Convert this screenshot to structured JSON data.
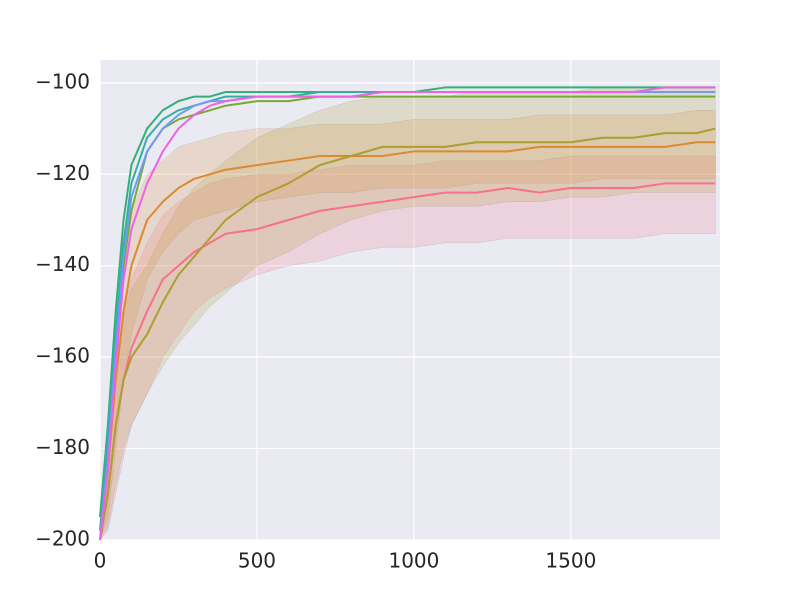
{
  "chart_data": {
    "type": "line",
    "x": [
      0,
      25,
      50,
      75,
      100,
      150,
      200,
      250,
      300,
      350,
      400,
      500,
      600,
      700,
      800,
      900,
      1000,
      1100,
      1200,
      1300,
      1400,
      1500,
      1600,
      1700,
      1800,
      1900,
      1960
    ],
    "series": [
      {
        "color": "#f77189",
        "values": [
          -200,
          -190,
          -175,
          -165,
          -158,
          -150,
          -143,
          -140,
          -137,
          -135,
          -133,
          -132,
          -130,
          -128,
          -127,
          -126,
          -125,
          -124,
          -124,
          -123,
          -124,
          -123,
          -123,
          -123,
          -122,
          -122,
          -122
        ],
        "lower": [
          -200,
          -198,
          -190,
          -182,
          -175,
          -168,
          -160,
          -155,
          -150,
          -147,
          -145,
          -142,
          -140,
          -139,
          -137,
          -136,
          -136,
          -135,
          -135,
          -134,
          -134,
          -134,
          -134,
          -134,
          -133,
          -133,
          -133
        ],
        "upper": [
          -200,
          -183,
          -165,
          -150,
          -143,
          -135,
          -129,
          -126,
          -124,
          -122,
          -121,
          -120,
          -120,
          -119,
          -118,
          -118,
          -118,
          -117,
          -117,
          -117,
          -117,
          -116,
          -116,
          -116,
          -116,
          -116,
          -116
        ]
      },
      {
        "color": "#dc8932",
        "values": [
          -200,
          -185,
          -165,
          -150,
          -140,
          -130,
          -126,
          -123,
          -121,
          -120,
          -119,
          -118,
          -117,
          -116,
          -116,
          -116,
          -115,
          -115,
          -115,
          -115,
          -114,
          -114,
          -114,
          -114,
          -114,
          -113,
          -113
        ],
        "lower": [
          -200,
          -195,
          -180,
          -165,
          -155,
          -143,
          -137,
          -133,
          -130,
          -129,
          -128,
          -126,
          -125,
          -124,
          -124,
          -123,
          -123,
          -123,
          -122,
          -122,
          -122,
          -122,
          -121,
          -121,
          -121,
          -121,
          -121
        ],
        "upper": [
          -200,
          -177,
          -152,
          -137,
          -128,
          -120,
          -117,
          -114,
          -113,
          -112,
          -111,
          -110,
          -110,
          -109,
          -109,
          -109,
          -108,
          -108,
          -108,
          -108,
          -107,
          -107,
          -107,
          -107,
          -107,
          -106,
          -106
        ]
      },
      {
        "color": "#ae9d31",
        "values": [
          -200,
          -190,
          -175,
          -165,
          -160,
          -155,
          -148,
          -142,
          -138,
          -134,
          -130,
          -125,
          -122,
          -118,
          -116,
          -114,
          -114,
          -114,
          -113,
          -113,
          -113,
          -113,
          -112,
          -112,
          -111,
          -111,
          -110
        ],
        "lower": [
          -200,
          -197,
          -188,
          -180,
          -175,
          -168,
          -162,
          -157,
          -153,
          -149,
          -146,
          -140,
          -137,
          -133,
          -130,
          -128,
          -127,
          -127,
          -127,
          -126,
          -126,
          -125,
          -125,
          -124,
          -124,
          -124,
          -124
        ],
        "upper": [
          -200,
          -180,
          -162,
          -150,
          -145,
          -140,
          -133,
          -127,
          -123,
          -120,
          -117,
          -112,
          -109,
          -106,
          -104,
          -103,
          -103,
          -103,
          -102,
          -102,
          -102,
          -102,
          -101,
          -101,
          -101,
          -101,
          -101
        ]
      },
      {
        "color": "#77ab31",
        "values": [
          -195,
          -180,
          -158,
          -140,
          -128,
          -115,
          -110,
          -108,
          -107,
          -106,
          -105,
          -104,
          -104,
          -103,
          -103,
          -103,
          -103,
          -103,
          -103,
          -103,
          -103,
          -103,
          -103,
          -103,
          -103,
          -103,
          -103
        ]
      },
      {
        "color": "#33b07a",
        "values": [
          -195,
          -175,
          -150,
          -130,
          -118,
          -110,
          -106,
          -104,
          -103,
          -103,
          -102,
          -102,
          -102,
          -102,
          -102,
          -102,
          -102,
          -101,
          -101,
          -101,
          -101,
          -101,
          -101,
          -101,
          -101,
          -101,
          -101
        ]
      },
      {
        "color": "#36ada4",
        "values": [
          -198,
          -178,
          -155,
          -135,
          -122,
          -112,
          -108,
          -106,
          -105,
          -104,
          -103,
          -103,
          -103,
          -102,
          -102,
          -102,
          -102,
          -102,
          -102,
          -102,
          -102,
          -102,
          -102,
          -102,
          -102,
          -102,
          -102
        ]
      },
      {
        "color": "#6e9bf4",
        "values": [
          -200,
          -182,
          -158,
          -138,
          -125,
          -115,
          -110,
          -107,
          -105,
          -104,
          -104,
          -103,
          -103,
          -103,
          -103,
          -102,
          -102,
          -102,
          -102,
          -102,
          -102,
          -102,
          -102,
          -102,
          -102,
          -102,
          -102
        ]
      },
      {
        "color": "#f161e5",
        "values": [
          -200,
          -185,
          -162,
          -143,
          -132,
          -122,
          -115,
          -110,
          -107,
          -105,
          -104,
          -103,
          -103,
          -103,
          -103,
          -102,
          -102,
          -102,
          -102,
          -102,
          -102,
          -102,
          -102,
          -102,
          -101,
          -101,
          -101
        ]
      }
    ],
    "xlim": [
      0,
      1975
    ],
    "ylim": [
      -200,
      -95
    ],
    "xticks": [
      0,
      500,
      1000,
      1500
    ],
    "yticks": [
      {
        "value": -200,
        "label": "−200"
      },
      {
        "value": -180,
        "label": "−180"
      },
      {
        "value": -160,
        "label": "−160"
      },
      {
        "value": -140,
        "label": "−140"
      },
      {
        "value": -120,
        "label": "−120"
      },
      {
        "value": -100,
        "label": "−100"
      }
    ],
    "grid": true
  }
}
